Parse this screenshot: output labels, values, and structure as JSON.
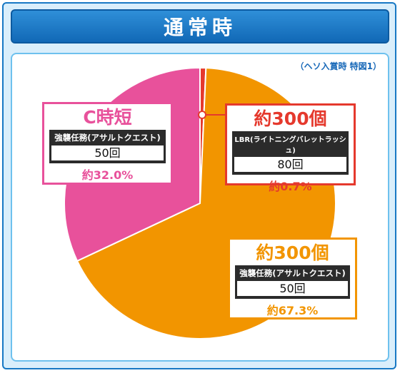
{
  "header": {
    "title": "通常時"
  },
  "note": "（ヘソ入賞時 特図1）",
  "colors": {
    "c_jitan": "#e8519b",
    "lbr": "#e5392d",
    "assault": "#f29500"
  },
  "chart_data": {
    "type": "pie",
    "title": "通常時",
    "slices": [
      {
        "label": "C時短",
        "mode": "強襲任務(アサルトクエスト)",
        "count": "50回",
        "percent_label": "約32.0%",
        "value": 32.0,
        "color": "#e8519b"
      },
      {
        "label": "約300個",
        "mode": "LBR(ライトニングバレットラッシュ)",
        "count": "80回",
        "percent_label": "約0.7%",
        "value": 0.7,
        "color": "#e5392d"
      },
      {
        "label": "約300個",
        "mode": "強襲任務(アサルトクエスト)",
        "count": "50回",
        "percent_label": "約67.3%",
        "value": 67.3,
        "color": "#f29500"
      }
    ]
  }
}
